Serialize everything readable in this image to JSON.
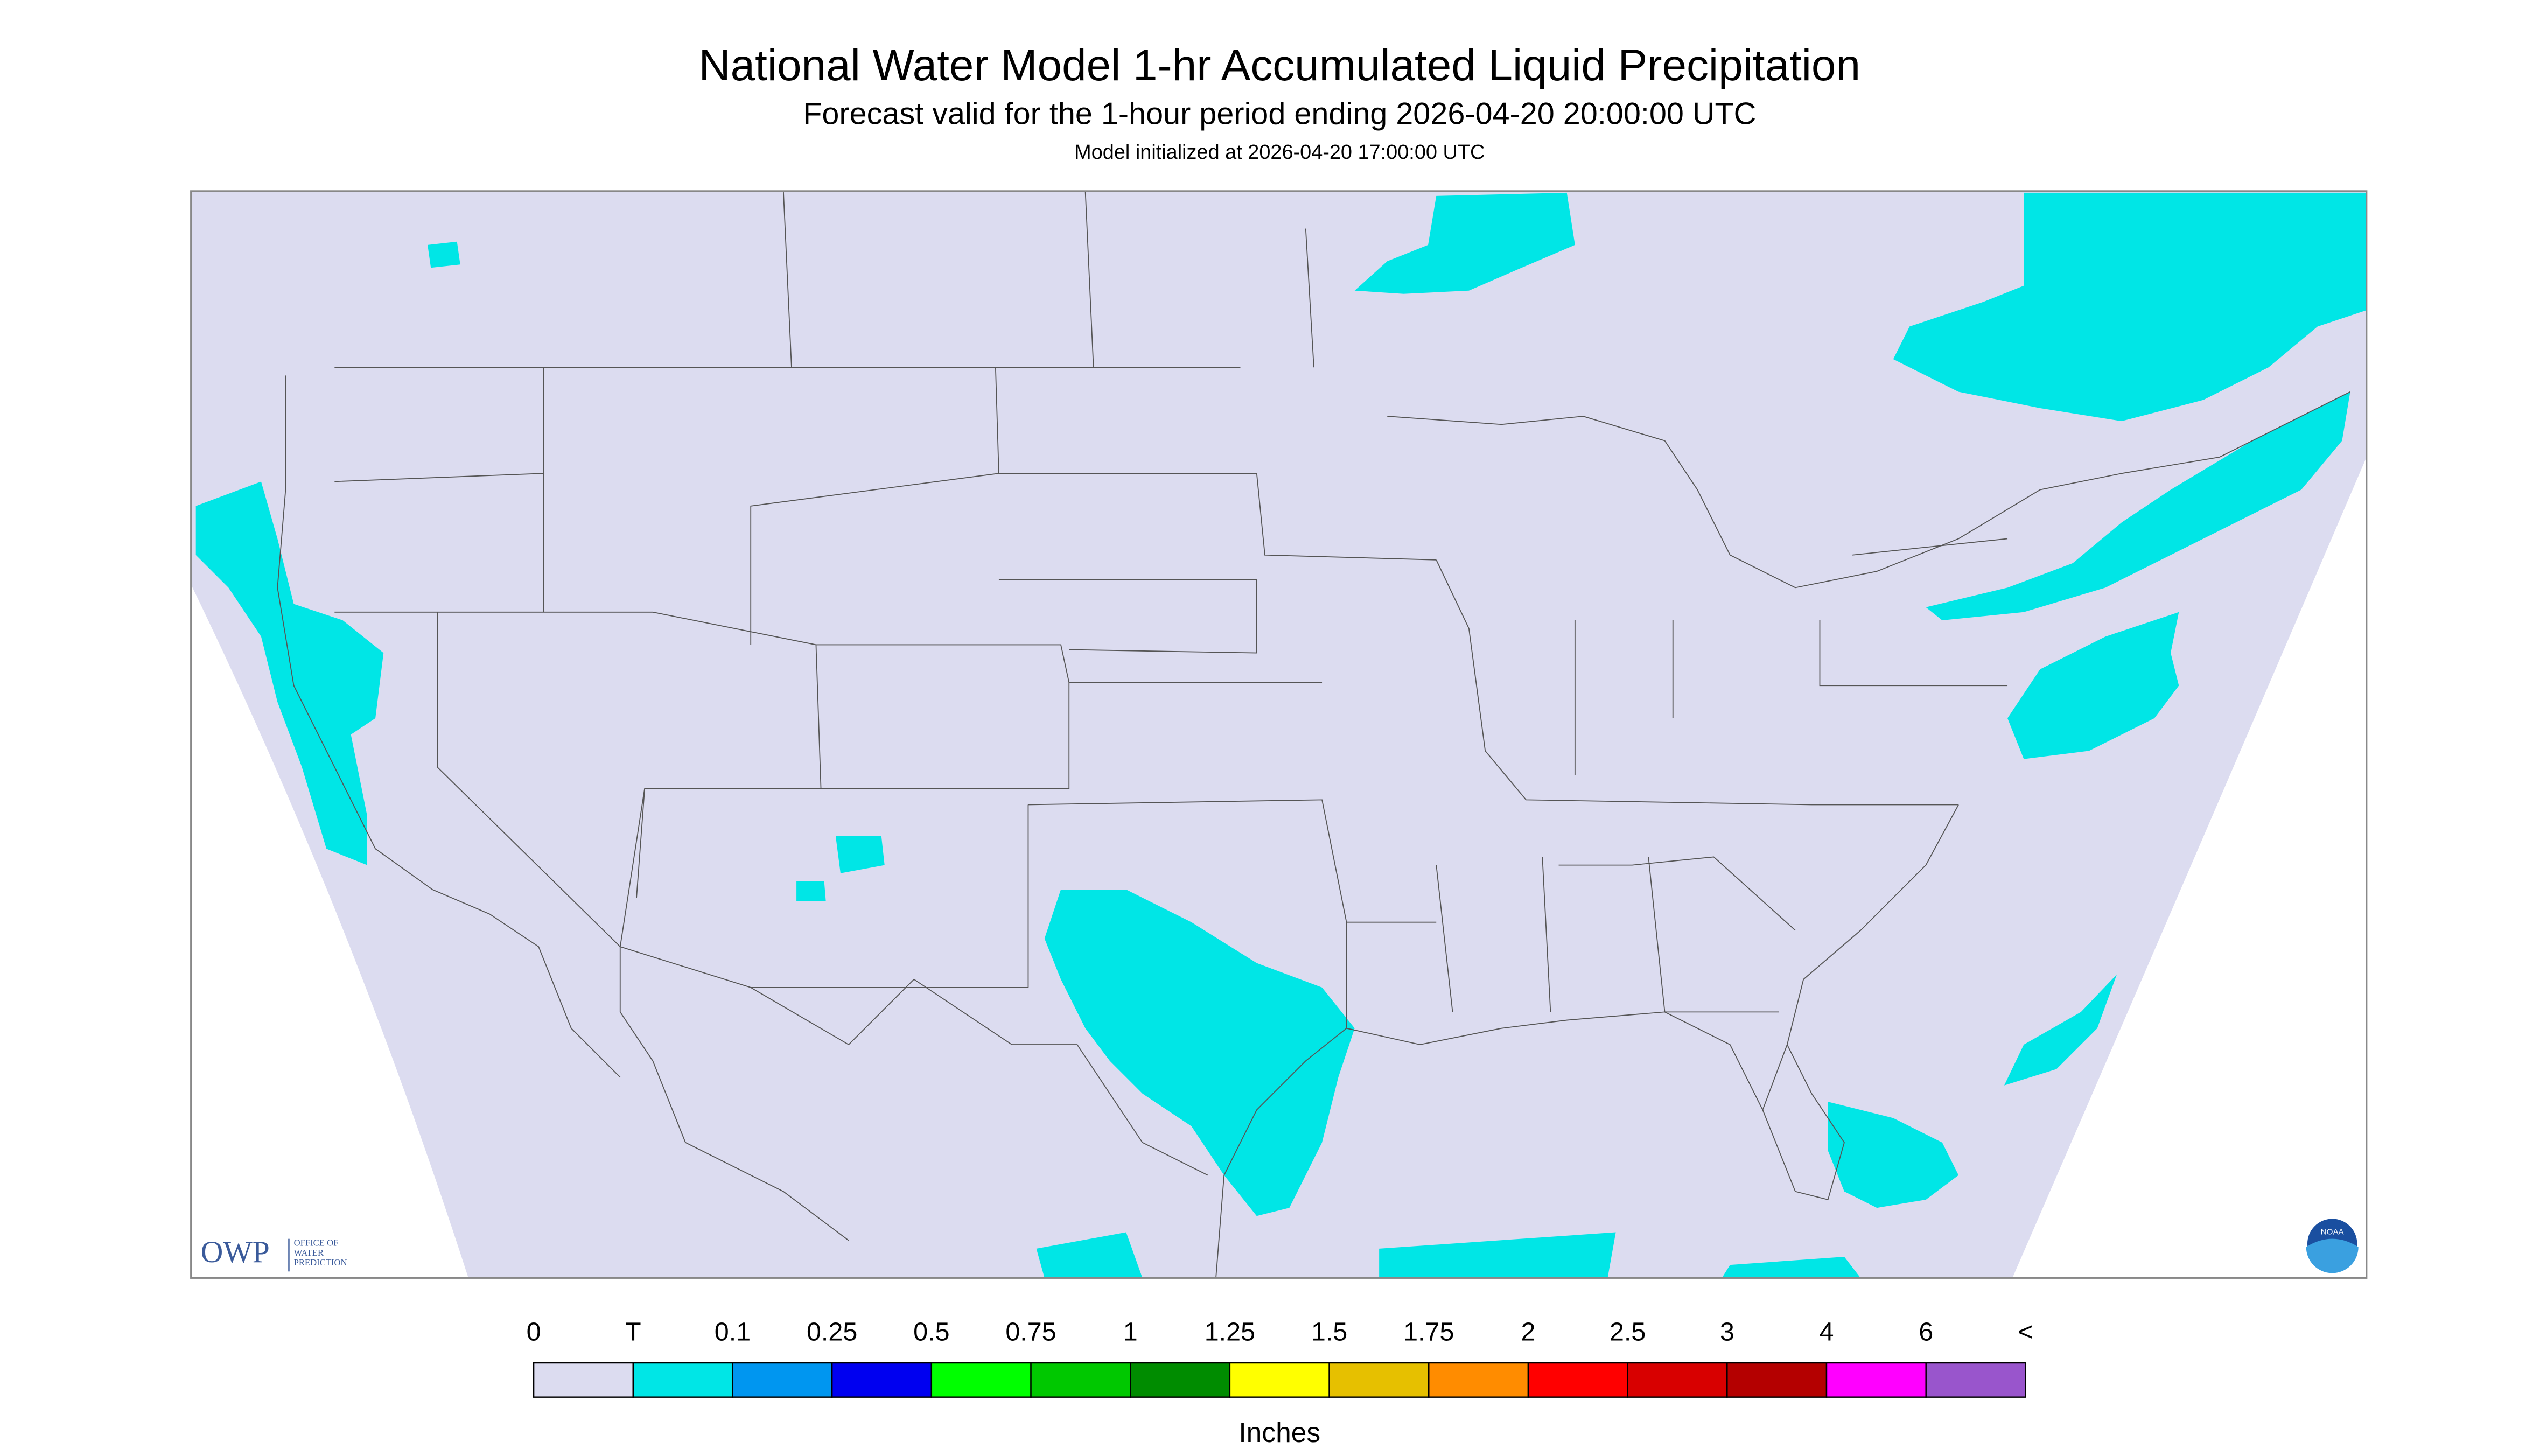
{
  "header": {
    "title": "National Water Model 1-hr Accumulated Liquid Precipitation",
    "subtitle": "Forecast valid for the 1-hour period ending 2026-04-20 20:00:00 UTC",
    "init": "Model initialized at 2026-04-20 17:00:00 UTC"
  },
  "logo": {
    "owp": "OWP",
    "owp_text": [
      "OFFICE OF",
      "WATER",
      "PREDICTION"
    ],
    "noaa": "NOAA"
  },
  "legend": {
    "labels": [
      "0",
      "T",
      "0.1",
      "0.25",
      "0.5",
      "0.75",
      "1",
      "1.25",
      "1.5",
      "1.75",
      "2",
      "2.5",
      "3",
      "4",
      "6",
      "<"
    ],
    "colors": [
      "#dcdcf0",
      "#00e6e6",
      "#0096f0",
      "#0000f0",
      "#00ff00",
      "#00c800",
      "#008c00",
      "#ffff00",
      "#e6c000",
      "#ff8c00",
      "#ff0000",
      "#d80000",
      "#b40000",
      "#ff00ff",
      "#9955cc"
    ],
    "units": "Inches"
  }
}
